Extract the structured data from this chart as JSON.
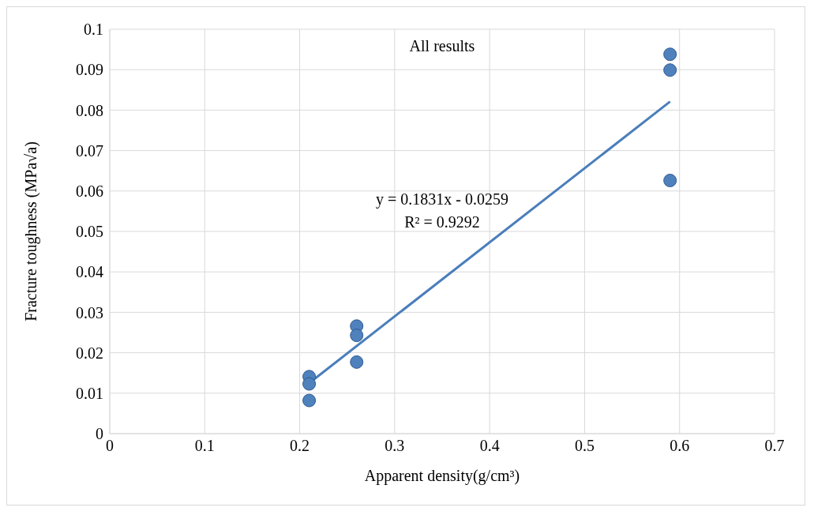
{
  "chart_data": {
    "type": "scatter",
    "title": "All results",
    "xlabel": "Apparent density(g/cm³)",
    "ylabel": "Fracture toughness (MPa√a)",
    "xlim": [
      0,
      0.7
    ],
    "xticks": [
      0,
      0.1,
      0.2,
      0.3,
      0.4,
      0.5,
      0.6,
      0.7
    ],
    "ylim": [
      0,
      0.1
    ],
    "yticks": [
      0,
      0.01,
      0.02,
      0.03,
      0.04,
      0.05,
      0.06,
      0.07,
      0.08,
      0.09,
      0.1
    ],
    "grid": true,
    "series": [
      {
        "marker": "circle",
        "color": "#4f81bd",
        "x": [
          0.21,
          0.21,
          0.21,
          0.26,
          0.26,
          0.26,
          0.59,
          0.59,
          0.59
        ],
        "values": [
          0.0141,
          0.0123,
          0.0082,
          0.0266,
          0.0243,
          0.0177,
          0.0938,
          0.0899,
          0.0626
        ]
      },
      {
        "type": "line",
        "color": "#4a7ebb",
        "x": [
          0.21,
          0.59
        ],
        "values": [
          0.0125,
          0.0821
        ],
        "line_style": "solid"
      }
    ],
    "annotations": [
      "y = 0.1831x - 0.0259",
      "R² = 0.9292"
    ]
  }
}
